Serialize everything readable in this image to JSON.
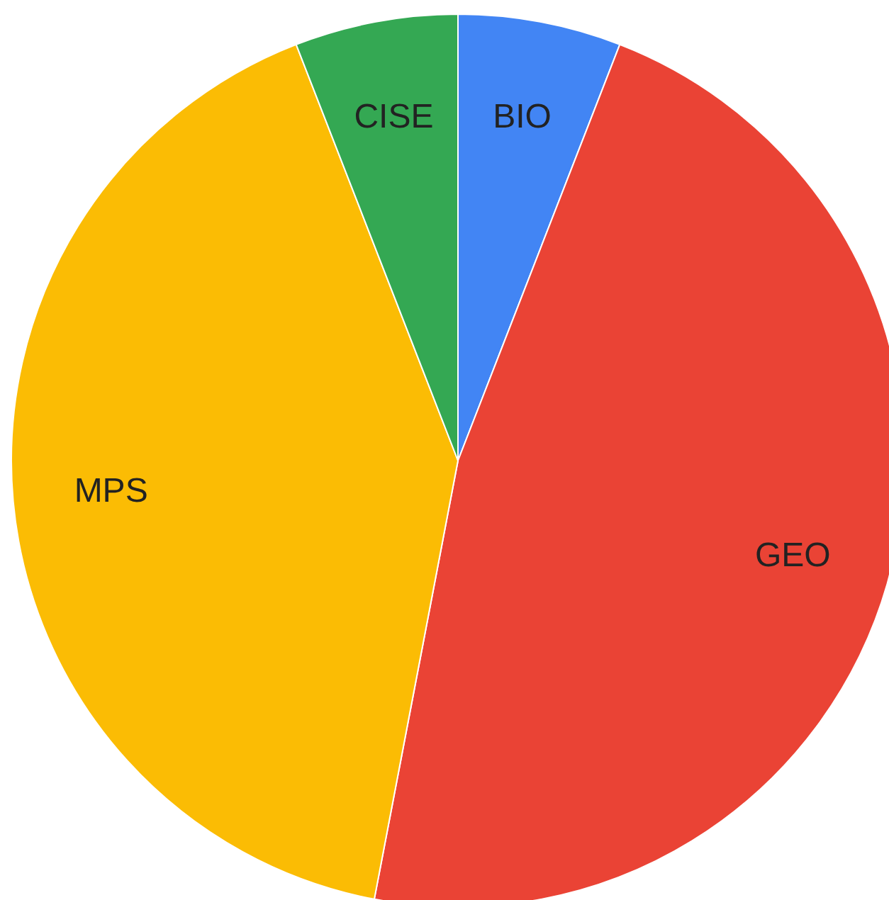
{
  "chart_data": {
    "type": "pie",
    "categories": [
      "BIO",
      "GEO",
      "MPS",
      "CISE"
    ],
    "values": [
      5.9,
      47.1,
      41.1,
      5.9
    ],
    "colors": [
      "#4285f4",
      "#ea4335",
      "#fbbc04",
      "#34a853"
    ],
    "legend": false
  }
}
